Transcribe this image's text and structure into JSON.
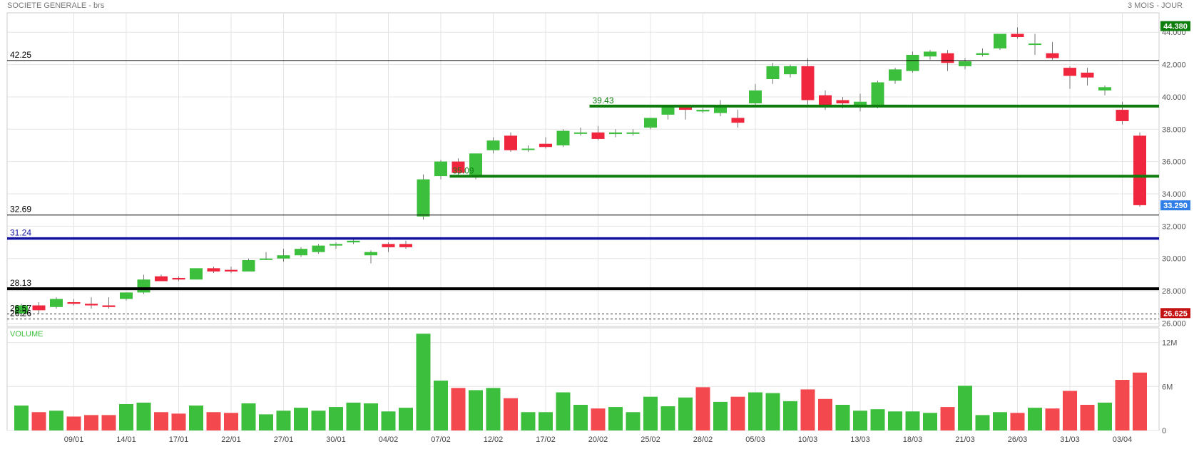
{
  "header": {
    "title": "SOCIETE GENERALE - brs",
    "period": "3 MOIS - JOUR"
  },
  "colors": {
    "up": "#3cbf3c",
    "down": "#f0263f",
    "vol_up": "#3cbf3c",
    "vol_down": "#f4484f",
    "green_line": "#0e7d0e",
    "blue_line": "#1212a0",
    "black_line": "#000000",
    "grid": "#e4e4e4",
    "last_price_bg": "#2f7fe6",
    "high_bg": "#0e7d0e",
    "low_bg": "#c41212"
  },
  "chart_data": [
    {
      "type": "candlestick",
      "title": "SOCIETE GENERALE - brs",
      "ylim": [
        25.8,
        45.2
      ],
      "y_ticks": [
        26,
        28,
        30,
        32,
        34,
        36,
        38,
        40,
        42,
        44
      ],
      "y_tick_labels": [
        "26.000",
        "28.000",
        "30.000",
        "32.000",
        "34.000",
        "36.000",
        "38.000",
        "40.000",
        "42.000",
        "44.000"
      ],
      "x_tick_labels": [
        {
          "label": "09/01",
          "i": 3
        },
        {
          "label": "14/01",
          "i": 6
        },
        {
          "label": "17/01",
          "i": 9
        },
        {
          "label": "22/01",
          "i": 12
        },
        {
          "label": "27/01",
          "i": 15
        },
        {
          "label": "30/01",
          "i": 18
        },
        {
          "label": "04/02",
          "i": 21
        },
        {
          "label": "07/02",
          "i": 24
        },
        {
          "label": "12/02",
          "i": 27
        },
        {
          "label": "17/02",
          "i": 30
        },
        {
          "label": "20/02",
          "i": 33
        },
        {
          "label": "25/02",
          "i": 36
        },
        {
          "label": "28/02",
          "i": 39
        },
        {
          "label": "05/03",
          "i": 42
        },
        {
          "label": "10/03",
          "i": 45
        },
        {
          "label": "13/03",
          "i": 48
        },
        {
          "label": "18/03",
          "i": 51
        },
        {
          "label": "21/03",
          "i": 54
        },
        {
          "label": "26/03",
          "i": 57
        },
        {
          "label": "31/03",
          "i": 60
        },
        {
          "label": "03/04",
          "i": 63
        }
      ],
      "ohlc": [
        {
          "o": 26.6,
          "h": 27.2,
          "l": 26.4,
          "c": 27.1
        },
        {
          "o": 27.1,
          "h": 27.3,
          "l": 26.6,
          "c": 26.8
        },
        {
          "o": 27.0,
          "h": 27.6,
          "l": 26.9,
          "c": 27.5
        },
        {
          "o": 27.3,
          "h": 27.5,
          "l": 27.1,
          "c": 27.2
        },
        {
          "o": 27.2,
          "h": 27.6,
          "l": 26.9,
          "c": 27.1
        },
        {
          "o": 27.1,
          "h": 27.6,
          "l": 26.9,
          "c": 27.0
        },
        {
          "o": 27.5,
          "h": 27.9,
          "l": 27.4,
          "c": 27.9
        },
        {
          "o": 27.9,
          "h": 29.0,
          "l": 27.8,
          "c": 28.7
        },
        {
          "o": 28.9,
          "h": 29.0,
          "l": 28.6,
          "c": 28.6
        },
        {
          "o": 28.8,
          "h": 28.9,
          "l": 28.6,
          "c": 28.7
        },
        {
          "o": 28.7,
          "h": 29.4,
          "l": 28.7,
          "c": 29.4
        },
        {
          "o": 29.4,
          "h": 29.5,
          "l": 29.1,
          "c": 29.2
        },
        {
          "o": 29.3,
          "h": 29.5,
          "l": 29.1,
          "c": 29.2
        },
        {
          "o": 29.2,
          "h": 30.0,
          "l": 29.2,
          "c": 29.9
        },
        {
          "o": 30.0,
          "h": 30.4,
          "l": 29.9,
          "c": 30.0
        },
        {
          "o": 30.0,
          "h": 30.6,
          "l": 29.8,
          "c": 30.2
        },
        {
          "o": 30.2,
          "h": 30.7,
          "l": 30.1,
          "c": 30.6
        },
        {
          "o": 30.4,
          "h": 30.9,
          "l": 30.3,
          "c": 30.8
        },
        {
          "o": 30.8,
          "h": 31.0,
          "l": 30.6,
          "c": 30.9
        },
        {
          "o": 31.0,
          "h": 31.2,
          "l": 30.9,
          "c": 31.1
        },
        {
          "o": 30.2,
          "h": 30.5,
          "l": 29.7,
          "c": 30.4
        },
        {
          "o": 30.9,
          "h": 31.0,
          "l": 30.4,
          "c": 30.7
        },
        {
          "o": 30.9,
          "h": 31.1,
          "l": 30.6,
          "c": 30.7
        },
        {
          "o": 32.6,
          "h": 35.2,
          "l": 32.4,
          "c": 34.9
        },
        {
          "o": 35.1,
          "h": 36.1,
          "l": 34.9,
          "c": 36.0
        },
        {
          "o": 36.0,
          "h": 36.2,
          "l": 35.1,
          "c": 35.3
        },
        {
          "o": 35.1,
          "h": 36.5,
          "l": 34.9,
          "c": 36.5
        },
        {
          "o": 36.7,
          "h": 37.5,
          "l": 36.5,
          "c": 37.3
        },
        {
          "o": 37.6,
          "h": 37.8,
          "l": 36.6,
          "c": 36.7
        },
        {
          "o": 36.8,
          "h": 37.0,
          "l": 36.6,
          "c": 36.8
        },
        {
          "o": 37.1,
          "h": 37.5,
          "l": 36.8,
          "c": 36.9
        },
        {
          "o": 37.0,
          "h": 38.0,
          "l": 36.9,
          "c": 37.9
        },
        {
          "o": 37.8,
          "h": 38.1,
          "l": 37.6,
          "c": 37.8
        },
        {
          "o": 37.8,
          "h": 38.2,
          "l": 37.3,
          "c": 37.4
        },
        {
          "o": 37.7,
          "h": 38.0,
          "l": 37.5,
          "c": 37.8
        },
        {
          "o": 37.8,
          "h": 38.0,
          "l": 37.6,
          "c": 37.8
        },
        {
          "o": 38.1,
          "h": 38.7,
          "l": 38.0,
          "c": 38.7
        },
        {
          "o": 38.9,
          "h": 39.5,
          "l": 38.6,
          "c": 39.4
        },
        {
          "o": 39.4,
          "h": 39.5,
          "l": 38.6,
          "c": 39.2
        },
        {
          "o": 39.1,
          "h": 39.3,
          "l": 39.0,
          "c": 39.2
        },
        {
          "o": 39.0,
          "h": 39.8,
          "l": 38.8,
          "c": 39.5
        },
        {
          "o": 38.7,
          "h": 39.2,
          "l": 38.1,
          "c": 38.4
        },
        {
          "o": 39.6,
          "h": 40.8,
          "l": 39.5,
          "c": 40.4
        },
        {
          "o": 41.1,
          "h": 42.1,
          "l": 40.8,
          "c": 41.9
        },
        {
          "o": 41.4,
          "h": 42.0,
          "l": 41.2,
          "c": 41.9
        },
        {
          "o": 41.9,
          "h": 42.4,
          "l": 39.5,
          "c": 39.8
        },
        {
          "o": 40.1,
          "h": 40.4,
          "l": 39.2,
          "c": 39.4
        },
        {
          "o": 39.8,
          "h": 40.0,
          "l": 39.3,
          "c": 39.6
        },
        {
          "o": 39.4,
          "h": 40.2,
          "l": 39.1,
          "c": 39.7
        },
        {
          "o": 39.4,
          "h": 41.0,
          "l": 39.3,
          "c": 40.9
        },
        {
          "o": 41.0,
          "h": 41.8,
          "l": 40.8,
          "c": 41.7
        },
        {
          "o": 41.6,
          "h": 42.8,
          "l": 41.5,
          "c": 42.6
        },
        {
          "o": 42.5,
          "h": 42.9,
          "l": 42.3,
          "c": 42.8
        },
        {
          "o": 42.7,
          "h": 42.9,
          "l": 41.6,
          "c": 42.1
        },
        {
          "o": 41.9,
          "h": 42.4,
          "l": 41.7,
          "c": 42.2
        },
        {
          "o": 42.6,
          "h": 43.0,
          "l": 42.5,
          "c": 42.7
        },
        {
          "o": 43.0,
          "h": 43.9,
          "l": 42.9,
          "c": 43.9
        },
        {
          "o": 43.9,
          "h": 44.3,
          "l": 43.6,
          "c": 43.7
        },
        {
          "o": 43.3,
          "h": 43.9,
          "l": 42.6,
          "c": 43.3
        },
        {
          "o": 42.7,
          "h": 43.4,
          "l": 42.3,
          "c": 42.4
        },
        {
          "o": 41.8,
          "h": 41.9,
          "l": 40.5,
          "c": 41.3
        },
        {
          "o": 41.5,
          "h": 41.8,
          "l": 40.7,
          "c": 41.2
        },
        {
          "o": 40.4,
          "h": 40.7,
          "l": 40.1,
          "c": 40.6
        },
        {
          "o": 39.2,
          "h": 39.7,
          "l": 38.3,
          "c": 38.5
        },
        {
          "o": 37.6,
          "h": 37.8,
          "l": 33.2,
          "c": 33.3
        }
      ],
      "levels": [
        {
          "value": 42.25,
          "label": "42.25",
          "style": "thin-black",
          "from_i": -1
        },
        {
          "value": 32.69,
          "label": "32.69",
          "style": "thin-black",
          "from_i": -1
        },
        {
          "value": 31.24,
          "label": "31.24",
          "style": "thick-blue",
          "from_i": -1
        },
        {
          "value": 28.13,
          "label": "28.13",
          "style": "thick-black",
          "from_i": -1
        },
        {
          "value": 26.57,
          "label": "26.57",
          "style": "dashed",
          "from_i": -1
        },
        {
          "value": 26.26,
          "label": "26.26",
          "style": "dashed",
          "from_i": -1
        },
        {
          "value": 39.43,
          "label": "39.43",
          "style": "thick-green",
          "from_i": 33
        },
        {
          "value": 35.09,
          "label": "35.09",
          "style": "thick-green",
          "from_i": 25
        }
      ],
      "price_badges": [
        {
          "value": 44.38,
          "label": "44.380",
          "kind": "high"
        },
        {
          "value": 33.29,
          "label": "33.290",
          "kind": "last"
        },
        {
          "value": 26.625,
          "label": "26.625",
          "kind": "low"
        }
      ]
    },
    {
      "type": "bar",
      "title": "VOLUME",
      "ylim": [
        0,
        14
      ],
      "y_ticks": [
        0,
        6,
        12
      ],
      "y_tick_labels": [
        "0",
        "6M",
        "12M"
      ],
      "unit": "M",
      "values": [
        3.4,
        2.5,
        2.7,
        1.9,
        2.1,
        2.1,
        3.6,
        3.8,
        2.5,
        2.3,
        3.4,
        2.5,
        2.4,
        3.7,
        2.2,
        2.7,
        3.1,
        2.7,
        3.2,
        3.8,
        3.7,
        2.6,
        3.1,
        13.2,
        6.8,
        5.8,
        5.5,
        5.8,
        4.4,
        2.5,
        2.5,
        5.2,
        3.5,
        3.0,
        3.2,
        2.5,
        4.6,
        3.3,
        4.5,
        5.9,
        3.9,
        4.6,
        5.2,
        5.1,
        4.0,
        5.6,
        4.3,
        3.5,
        2.7,
        2.9,
        2.6,
        2.6,
        2.4,
        3.2,
        6.1,
        2.1,
        2.5,
        2.4,
        3.1,
        3.0,
        5.4,
        3.5,
        3.8,
        6.9,
        7.9
      ],
      "up": [
        1,
        0,
        1,
        0,
        0,
        0,
        1,
        1,
        0,
        0,
        1,
        0,
        0,
        1,
        1,
        1,
        1,
        1,
        1,
        1,
        1,
        1,
        1,
        1,
        1,
        0,
        1,
        1,
        0,
        1,
        1,
        1,
        1,
        0,
        1,
        1,
        1,
        1,
        1,
        0,
        1,
        0,
        1,
        1,
        1,
        0,
        0,
        1,
        1,
        1,
        1,
        1,
        1,
        0,
        1,
        1,
        1,
        0,
        1,
        0,
        0,
        0,
        1,
        0,
        0
      ]
    }
  ]
}
